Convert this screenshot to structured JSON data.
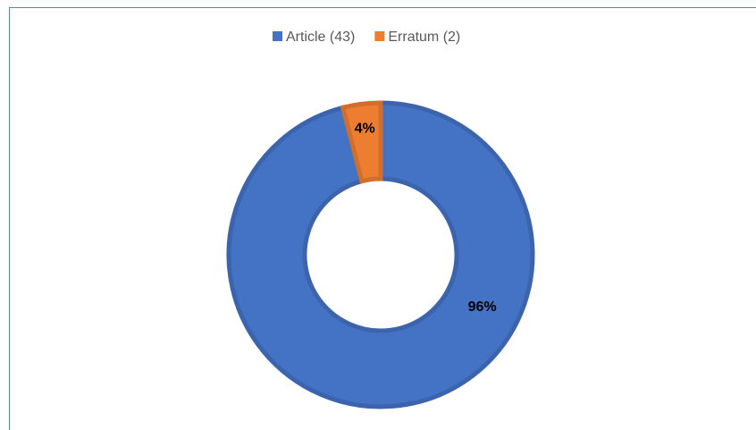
{
  "chart_data": {
    "type": "donut",
    "categories": [
      "Article (43)",
      "Erratum (2)"
    ],
    "values": [
      96,
      4
    ],
    "value_labels": [
      "96%",
      "4%"
    ],
    "colors": [
      "#4472c4",
      "#ed7d31"
    ],
    "legend": "top"
  }
}
